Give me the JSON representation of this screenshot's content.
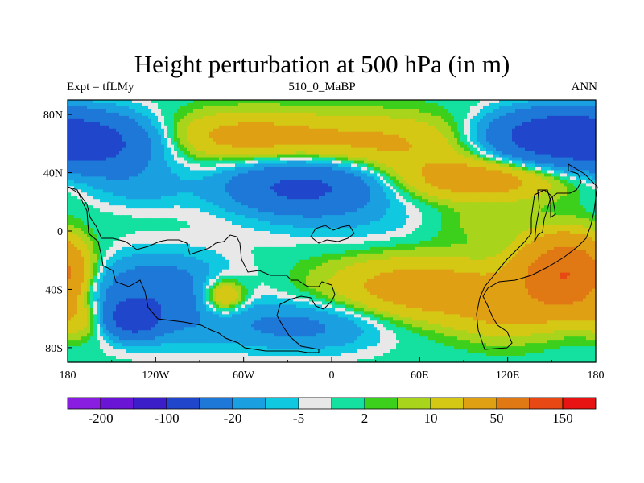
{
  "title": "Height perturbation at 500 hPa (in m)",
  "experiment_label": "Expt = tfLMy",
  "center_label": "510_0_MaBP",
  "season_label": "ANN",
  "chart_data": {
    "type": "heatmap",
    "title": "Height perturbation at 500 hPa (in m)",
    "xlim": [
      -180,
      180
    ],
    "ylim": [
      -90,
      90
    ],
    "x_ticks": [
      {
        "value": -180,
        "label": "180"
      },
      {
        "value": -120,
        "label": "120W"
      },
      {
        "value": -60,
        "label": "60W"
      },
      {
        "value": 0,
        "label": "0"
      },
      {
        "value": 60,
        "label": "60E"
      },
      {
        "value": 120,
        "label": "120E"
      },
      {
        "value": 180,
        "label": "180"
      }
    ],
    "y_ticks": [
      {
        "value": 80,
        "label": "80N"
      },
      {
        "value": 40,
        "label": "40N"
      },
      {
        "value": 0,
        "label": "0"
      },
      {
        "value": -40,
        "label": "40S"
      },
      {
        "value": -80,
        "label": "80S"
      }
    ],
    "colorbar": {
      "colors": [
        "#8a1ee0",
        "#6a14d6",
        "#3c1ec8",
        "#2046cc",
        "#1e78d8",
        "#1aa0e0",
        "#10c8e0",
        "#e8e8e8",
        "#14e0a0",
        "#3cd01c",
        "#a8d41c",
        "#d4c814",
        "#e0a014",
        "#e07814",
        "#e84814",
        "#e81414"
      ],
      "levels": [
        -200,
        -150,
        -100,
        -50,
        -20,
        -10,
        -5,
        -2,
        2,
        5,
        10,
        20,
        50,
        100,
        150
      ],
      "labels": [
        {
          "level_index": 0,
          "text": "-200"
        },
        {
          "level_index": 2,
          "text": "-100"
        },
        {
          "level_index": 4,
          "text": "-20"
        },
        {
          "level_index": 6,
          "text": "-5"
        },
        {
          "level_index": 8,
          "text": "2"
        },
        {
          "level_index": 10,
          "text": "10"
        },
        {
          "level_index": 12,
          "text": "50"
        },
        {
          "level_index": 14,
          "text": "150"
        }
      ]
    },
    "anomaly_centers": [
      {
        "lon": -160,
        "lat": 60,
        "value": -60,
        "spread_lon": 30,
        "spread_lat": 14
      },
      {
        "lon": -60,
        "lat": 65,
        "value": 25,
        "spread_lon": 45,
        "spread_lat": 12
      },
      {
        "lon": 40,
        "lat": 60,
        "value": 20,
        "spread_lon": 45,
        "spread_lat": 14
      },
      {
        "lon": 150,
        "lat": 65,
        "value": -80,
        "spread_lon": 30,
        "spread_lat": 12
      },
      {
        "lon": -20,
        "lat": 30,
        "value": -60,
        "spread_lon": 35,
        "spread_lat": 12
      },
      {
        "lon": 100,
        "lat": 35,
        "value": 30,
        "spread_lon": 40,
        "spread_lat": 10
      },
      {
        "lon": -130,
        "lat": 30,
        "value": -12,
        "spread_lon": 25,
        "spread_lat": 10
      },
      {
        "lon": 20,
        "lat": 5,
        "value": -8,
        "spread_lon": 50,
        "spread_lat": 12
      },
      {
        "lon": -120,
        "lat": -45,
        "value": -40,
        "spread_lon": 35,
        "spread_lat": 18
      },
      {
        "lon": -135,
        "lat": -60,
        "value": -70,
        "spread_lon": 12,
        "spread_lat": 8
      },
      {
        "lon": -75,
        "lat": -45,
        "value": 35,
        "spread_lon": 12,
        "spread_lat": 9
      },
      {
        "lon": -20,
        "lat": -65,
        "value": -25,
        "spread_lon": 40,
        "spread_lat": 12
      },
      {
        "lon": 60,
        "lat": -40,
        "value": 30,
        "spread_lon": 45,
        "spread_lat": 16
      },
      {
        "lon": 160,
        "lat": -30,
        "value": 100,
        "spread_lon": 20,
        "spread_lat": 16
      },
      {
        "lon": -170,
        "lat": -60,
        "value": 20,
        "spread_lon": 14,
        "spread_lat": 10
      },
      {
        "lon": 120,
        "lat": -55,
        "value": 18,
        "spread_lon": 25,
        "spread_lat": 14
      },
      {
        "lon": 100,
        "lat": 5,
        "value": 8,
        "spread_lon": 30,
        "spread_lat": 10
      }
    ]
  }
}
